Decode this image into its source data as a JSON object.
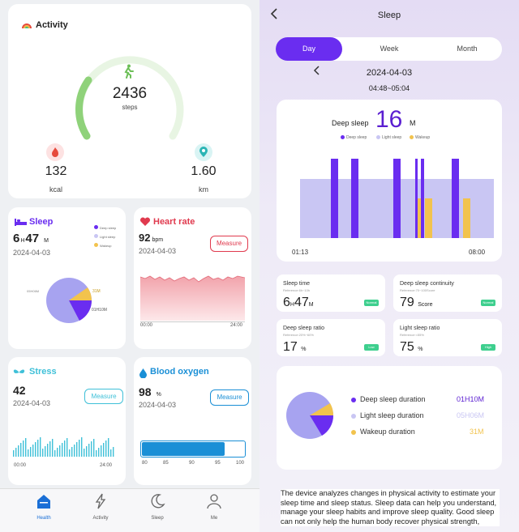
{
  "activity": {
    "title": "Activity",
    "steps_value": "2436",
    "steps_label": "steps",
    "kcal_value": "132",
    "kcal_label": "kcal",
    "km_value": "1.60",
    "km_label": "km"
  },
  "sleep_card": {
    "title": "Sleep",
    "hours": "6",
    "h": "H",
    "minutes": "47",
    "m": "M",
    "date": "2024-04-03",
    "legend": [
      "Deep sleep",
      "Light sleep",
      "Wakeup"
    ],
    "pie_labels": [
      "05H06M",
      "31M",
      "01H10M"
    ]
  },
  "heart_card": {
    "title": "Heart rate",
    "value": "92",
    "unit": "bpm",
    "date": "2024-04-03",
    "measure": "Measure",
    "x_start": "00:00",
    "x_end": "24:00"
  },
  "stress_card": {
    "title": "Stress",
    "value": "42",
    "date": "2024-04-03",
    "measure": "Measure",
    "x_start": "00:00",
    "x_end": "24:00"
  },
  "oxygen_card": {
    "title": "Blood oxygen",
    "value": "98",
    "unit": "%",
    "date": "2024-04-03",
    "measure": "Measure",
    "ticks": [
      "80",
      "85",
      "90",
      "95",
      "100"
    ],
    "level": 0.98
  },
  "nav": {
    "health": "Health",
    "activity": "Activity",
    "sleep": "Sleep",
    "me": "Me"
  },
  "sleep_page": {
    "title": "Sleep",
    "tabs": [
      "Day",
      "Week",
      "Month"
    ],
    "date": "2024-04-03",
    "range": "04:48~05:04",
    "deep_label": "Deep sleep",
    "deep_value": "16",
    "deep_unit": "M",
    "legend": [
      "Deep sleep",
      "Light sleep",
      "Wakeup"
    ],
    "time_start": "01:13",
    "time_end": "08:00",
    "stats": [
      {
        "title": "Sleep time",
        "ref": "Reference:6h~10h",
        "value": "6",
        "unit1": "H",
        "value2": "47",
        "unit2": "M",
        "badge": "Normal"
      },
      {
        "title": "Deep sleep continuity",
        "ref": "Reference:70~100Score",
        "value": "79",
        "unit1": "Score",
        "badge": "Normal"
      },
      {
        "title": "Deep sleep ratio",
        "ref": "Reference:20%~60%",
        "value": "17",
        "unit1": "%",
        "badge": "Low"
      },
      {
        "title": "Light sleep ratio",
        "ref": "Reference:<55%",
        "value": "75",
        "unit1": "%",
        "badge": "High"
      }
    ],
    "durations": [
      {
        "label": "Deep sleep duration",
        "value": "01H10M",
        "color": "#6a2df0"
      },
      {
        "label": "Light sleep duration",
        "value": "05H06M",
        "color": "#c9c6f3"
      },
      {
        "label": "Wakeup duration",
        "value": "31M",
        "color": "#f2c34d"
      }
    ],
    "description": "The device analyzes changes in physical activity to estimate your sleep time and sleep status. Sleep data can help you understand, manage your sleep habits and improve sleep quality. Good sleep can not only help the human body recover physical strength,"
  },
  "colors": {
    "accent": "#6a2df0",
    "deep": "#6a2df0",
    "light": "#c9c6f3",
    "wake": "#f2c34d",
    "heart": "#e03a4e",
    "stress": "#3fc0d8",
    "oxygen": "#1a8fd6",
    "activity": "#8fd27a"
  }
}
